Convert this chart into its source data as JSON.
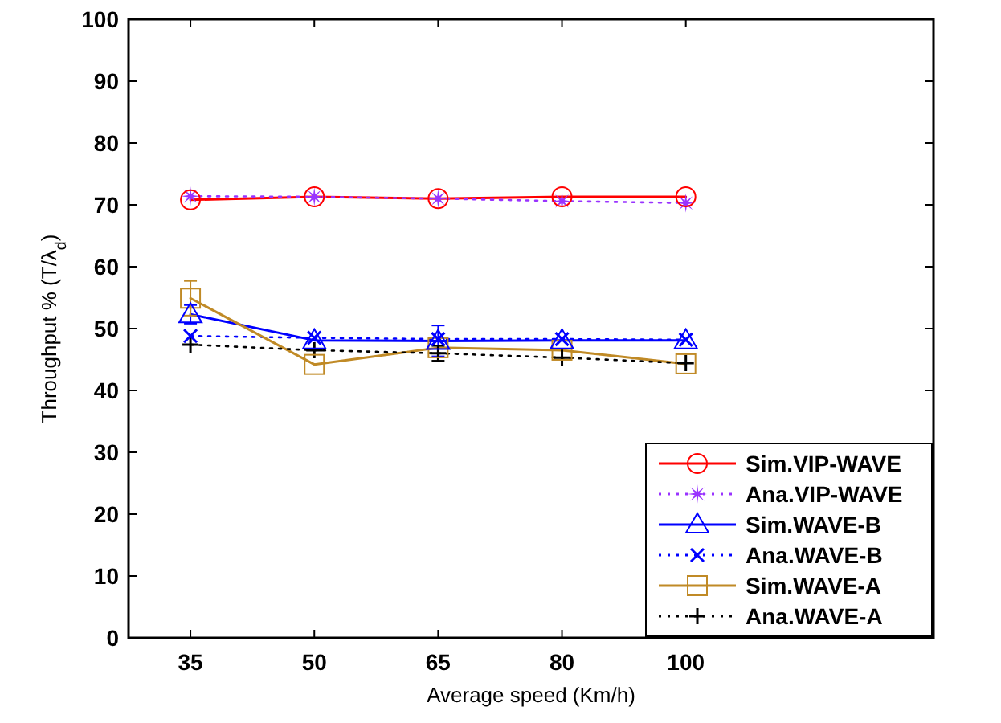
{
  "chart_data": {
    "type": "line",
    "xlabel": "Average speed (Km/h)",
    "ylabel": "Throughput % (T/λ$_{d}$)",
    "categories": [
      "35",
      "50",
      "65",
      "80",
      "100"
    ],
    "ylim": [
      0,
      100
    ],
    "yticks": [
      0,
      10,
      20,
      30,
      40,
      50,
      60,
      70,
      80,
      90,
      100
    ],
    "grid": false,
    "legend": "bottom right",
    "series": [
      {
        "name": "Sim.VIP-WAVE",
        "color": "#ff0000",
        "marker": "circle",
        "line_style": "solid",
        "values": [
          70.8,
          71.3,
          71.0,
          71.3,
          71.3
        ]
      },
      {
        "name": "Ana.VIP-WAVE",
        "color": "#9933ff",
        "marker": "star",
        "line_style": "dotted",
        "values": [
          71.4,
          71.3,
          71.0,
          70.6,
          70.3
        ]
      },
      {
        "name": "Sim.WAVE-B",
        "color": "#0000ff",
        "marker": "triangle",
        "line_style": "solid",
        "values": [
          52.3,
          48.1,
          48.0,
          48.1,
          48.1
        ],
        "errors": [
          1.5,
          null,
          2.5,
          null,
          null
        ]
      },
      {
        "name": "Ana.WAVE-B",
        "color": "#0000ff",
        "marker": "cross",
        "line_style": "dotted",
        "values": [
          48.8,
          48.5,
          48.3,
          48.3,
          48.2
        ]
      },
      {
        "name": "Sim.WAVE-A",
        "color": "#c08a26",
        "marker": "square",
        "line_style": "solid",
        "values": [
          54.9,
          44.2,
          46.9,
          46.5,
          44.3
        ],
        "errors": [
          2.8,
          null,
          null,
          null,
          null
        ]
      },
      {
        "name": "Ana.WAVE-A",
        "color": "#000000",
        "marker": "plus",
        "line_style": "dotted",
        "values": [
          47.4,
          46.5,
          46.0,
          45.3,
          44.4
        ],
        "errors": [
          null,
          null,
          1.2,
          null,
          null
        ]
      }
    ]
  }
}
